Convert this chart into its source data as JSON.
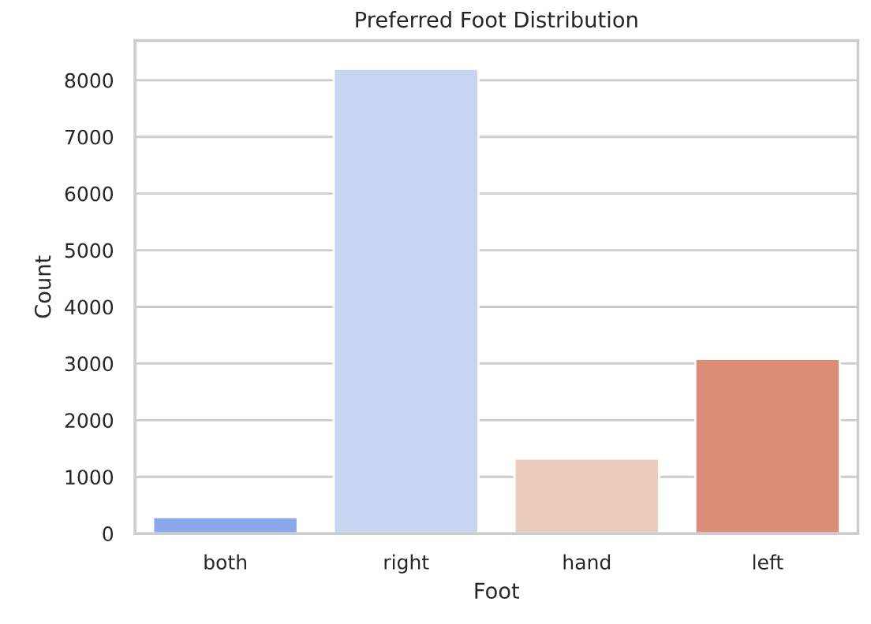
{
  "chart_data": {
    "type": "bar",
    "title": "Preferred Foot Distribution",
    "xlabel": "Foot",
    "ylabel": "Count",
    "categories": [
      "both",
      "right",
      "hand",
      "left"
    ],
    "values": [
      290,
      8200,
      1320,
      3080
    ],
    "colors": [
      "#8aa8eb",
      "#c6d5f0",
      "#eaccbd",
      "#dc8d77"
    ],
    "ylim": [
      0,
      8700
    ],
    "yticks": [
      0,
      1000,
      2000,
      3000,
      4000,
      5000,
      6000,
      7000,
      8000
    ],
    "grid": "y"
  }
}
